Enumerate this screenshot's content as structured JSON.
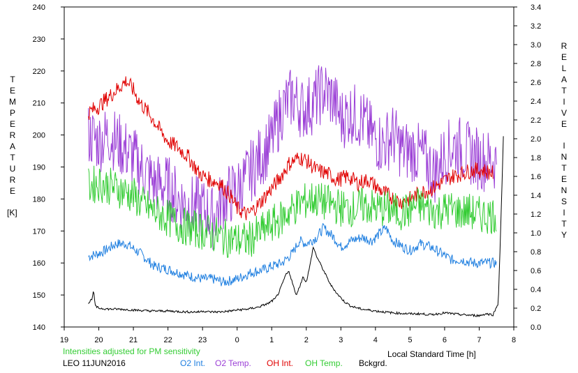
{
  "chart_data": {
    "type": "line",
    "x_axis": {
      "label": "Local Standard Time [h]",
      "range": [
        19,
        32
      ],
      "ticks": [
        {
          "v": 19,
          "t": "19"
        },
        {
          "v": 20,
          "t": "20"
        },
        {
          "v": 21,
          "t": "21"
        },
        {
          "v": 22,
          "t": "22"
        },
        {
          "v": 23,
          "t": "23"
        },
        {
          "v": 24,
          "t": "0"
        },
        {
          "v": 25,
          "t": "1"
        },
        {
          "v": 26,
          "t": "2"
        },
        {
          "v": 27,
          "t": "3"
        },
        {
          "v": 28,
          "t": "4"
        },
        {
          "v": 29,
          "t": "5"
        },
        {
          "v": 30,
          "t": "6"
        },
        {
          "v": 31,
          "t": "7"
        },
        {
          "v": 32,
          "t": "8"
        }
      ]
    },
    "y_left": {
      "label_letters": [
        "T",
        "E",
        "M",
        "P",
        "E",
        "R",
        "A",
        "T",
        "U",
        "R",
        "E"
      ],
      "unit": "[K]",
      "range": [
        140,
        240
      ],
      "ticks": [
        "140",
        "150",
        "160",
        "170",
        "180",
        "190",
        "200",
        "210",
        "220",
        "230",
        "240"
      ]
    },
    "y_right": {
      "label_word1": [
        "R",
        "E",
        "L",
        "A",
        "T",
        "I",
        "V",
        "E"
      ],
      "label_word2": [
        "I",
        "N",
        "T",
        "E",
        "N",
        "S",
        "I",
        "T",
        "Y"
      ],
      "range": [
        0,
        3.4
      ],
      "ticks": [
        "0.0",
        "0.2",
        "0.4",
        "0.6",
        "0.8",
        "1.0",
        "1.2",
        "1.4",
        "1.6",
        "1.8",
        "2.0",
        "2.2",
        "2.4",
        "2.6",
        "2.8",
        "3.0",
        "3.2",
        "3.4"
      ]
    },
    "series": [
      {
        "name": "O2 Int.",
        "color": "#1f7fe0",
        "axis": "left",
        "noise": 1.6,
        "x": [
          19.7,
          20.0,
          20.2,
          20.5,
          20.8,
          21.2,
          21.6,
          22.0,
          22.3,
          22.6,
          23.0,
          23.3,
          23.6,
          24.0,
          24.4,
          24.8,
          25.0,
          25.3,
          25.6,
          25.8,
          26.0,
          26.3,
          26.5,
          26.8,
          27.0,
          27.3,
          27.6,
          27.9,
          28.1,
          28.3,
          28.5,
          28.8,
          29.0,
          29.3,
          29.6,
          29.9,
          30.2,
          30.5,
          30.8,
          31.0,
          31.3,
          31.5
        ],
        "y": [
          162,
          163,
          164,
          166,
          166,
          163,
          159,
          158,
          157,
          156,
          155,
          155,
          154,
          155,
          157,
          158,
          159,
          160,
          163,
          167,
          166,
          168,
          171,
          168,
          165,
          167,
          168,
          167,
          169,
          171,
          167,
          165,
          164,
          166,
          165,
          163,
          161,
          161,
          160,
          160,
          160,
          160
        ]
      },
      {
        "name": "O2 Temp.",
        "color": "#9b3fd6",
        "axis": "left",
        "noise": 10,
        "x": [
          19.7,
          20.0,
          20.3,
          20.6,
          21.0,
          21.3,
          21.6,
          22.0,
          22.3,
          22.6,
          23.0,
          23.3,
          23.6,
          24.0,
          24.3,
          24.6,
          25.0,
          25.3,
          25.6,
          25.9,
          26.2,
          26.5,
          26.8,
          27.0,
          27.3,
          27.6,
          27.9,
          28.2,
          28.5,
          28.8,
          29.1,
          29.4,
          29.7,
          30.0,
          30.3,
          30.6,
          30.9,
          31.2,
          31.5
        ],
        "y": [
          200,
          198,
          200,
          197,
          193,
          189,
          185,
          184,
          180,
          178,
          177,
          174,
          180,
          183,
          187,
          192,
          198,
          208,
          212,
          208,
          210,
          214,
          211,
          205,
          207,
          205,
          200,
          197,
          200,
          195,
          195,
          193,
          188,
          194,
          197,
          195,
          193,
          192,
          192
        ]
      },
      {
        "name": "OH Int.",
        "color": "#e00000",
        "axis": "left",
        "noise": 2.5,
        "x": [
          19.7,
          20.0,
          20.3,
          20.6,
          20.8,
          21.0,
          21.2,
          21.5,
          21.8,
          22.0,
          22.3,
          22.6,
          22.9,
          23.2,
          23.5,
          23.8,
          24.0,
          24.3,
          24.6,
          24.9,
          25.2,
          25.5,
          25.8,
          26.0,
          26.3,
          26.6,
          26.9,
          27.2,
          27.5,
          27.8,
          28.1,
          28.4,
          28.7,
          29.0,
          29.3,
          29.6,
          29.9,
          30.2,
          30.5,
          30.8,
          31.1,
          31.4
        ],
        "y": [
          207,
          209,
          212,
          215,
          217,
          214,
          210,
          206,
          201,
          198,
          196,
          193,
          188,
          186,
          185,
          181,
          177,
          175,
          178,
          182,
          186,
          191,
          193,
          192,
          189,
          188,
          186,
          187,
          185,
          186,
          183,
          181,
          179,
          180,
          182,
          183,
          185,
          187,
          188,
          189,
          189,
          188
        ]
      },
      {
        "name": "OH Temp.",
        "color": "#33cc33",
        "axis": "left",
        "noise": 6,
        "x": [
          19.7,
          20.0,
          20.3,
          20.6,
          21.0,
          21.3,
          21.6,
          22.0,
          22.3,
          22.6,
          23.0,
          23.3,
          23.6,
          24.0,
          24.3,
          24.6,
          25.0,
          25.3,
          25.6,
          25.9,
          26.2,
          26.5,
          26.8,
          27.1,
          27.4,
          27.7,
          28.0,
          28.3,
          28.6,
          28.9,
          29.2,
          29.5,
          29.8,
          30.1,
          30.4,
          30.7,
          31.0,
          31.3,
          31.5
        ],
        "y": [
          184,
          185,
          184,
          183,
          181,
          178,
          176,
          174,
          172,
          171,
          170,
          169,
          168,
          167,
          167,
          169,
          172,
          174,
          177,
          179,
          180,
          179,
          178,
          177,
          177,
          178,
          177,
          177,
          176,
          176,
          178,
          177,
          176,
          177,
          176,
          176,
          175,
          175,
          175
        ]
      },
      {
        "name": "Bckgrd.",
        "color": "#000000",
        "axis": "right",
        "noise": 0.012,
        "x": [
          19.7,
          19.8,
          19.85,
          19.9,
          20.0,
          20.3,
          20.6,
          21.0,
          21.5,
          22.0,
          22.5,
          22.9,
          23.0,
          23.2,
          23.5,
          23.8,
          24.0,
          24.3,
          24.6,
          24.9,
          25.1,
          25.2,
          25.3,
          25.4,
          25.5,
          25.6,
          25.7,
          25.8,
          25.9,
          26.0,
          26.1,
          26.2,
          26.3,
          26.5,
          26.7,
          26.9,
          27.1,
          27.3,
          27.6,
          28.0,
          28.5,
          29.0,
          29.3,
          29.6,
          30.0,
          30.5,
          31.0,
          31.2,
          31.4,
          31.55,
          31.6,
          31.65,
          31.7
        ],
        "y": [
          0.25,
          0.3,
          0.38,
          0.22,
          0.2,
          0.19,
          0.19,
          0.18,
          0.17,
          0.17,
          0.16,
          0.16,
          0.17,
          0.16,
          0.16,
          0.17,
          0.18,
          0.19,
          0.21,
          0.25,
          0.3,
          0.36,
          0.45,
          0.55,
          0.59,
          0.47,
          0.34,
          0.42,
          0.53,
          0.48,
          0.64,
          0.85,
          0.75,
          0.6,
          0.45,
          0.35,
          0.27,
          0.22,
          0.19,
          0.17,
          0.15,
          0.14,
          0.14,
          0.13,
          0.15,
          0.13,
          0.12,
          0.14,
          0.13,
          0.25,
          0.8,
          1.4,
          2.02
        ]
      }
    ]
  },
  "annotations": {
    "intensities_note": "Intensities adjusted for PM sensitivity",
    "station_date": "LEO 11JUN2016"
  },
  "legend": [
    {
      "label": "O2 Int.",
      "color": "#1f7fe0"
    },
    {
      "label": "O2 Temp.",
      "color": "#9b3fd6"
    },
    {
      "label": "OH Int.",
      "color": "#e00000"
    },
    {
      "label": "OH Temp.",
      "color": "#33cc33"
    },
    {
      "label": "Bckgrd.",
      "color": "#000000"
    }
  ]
}
